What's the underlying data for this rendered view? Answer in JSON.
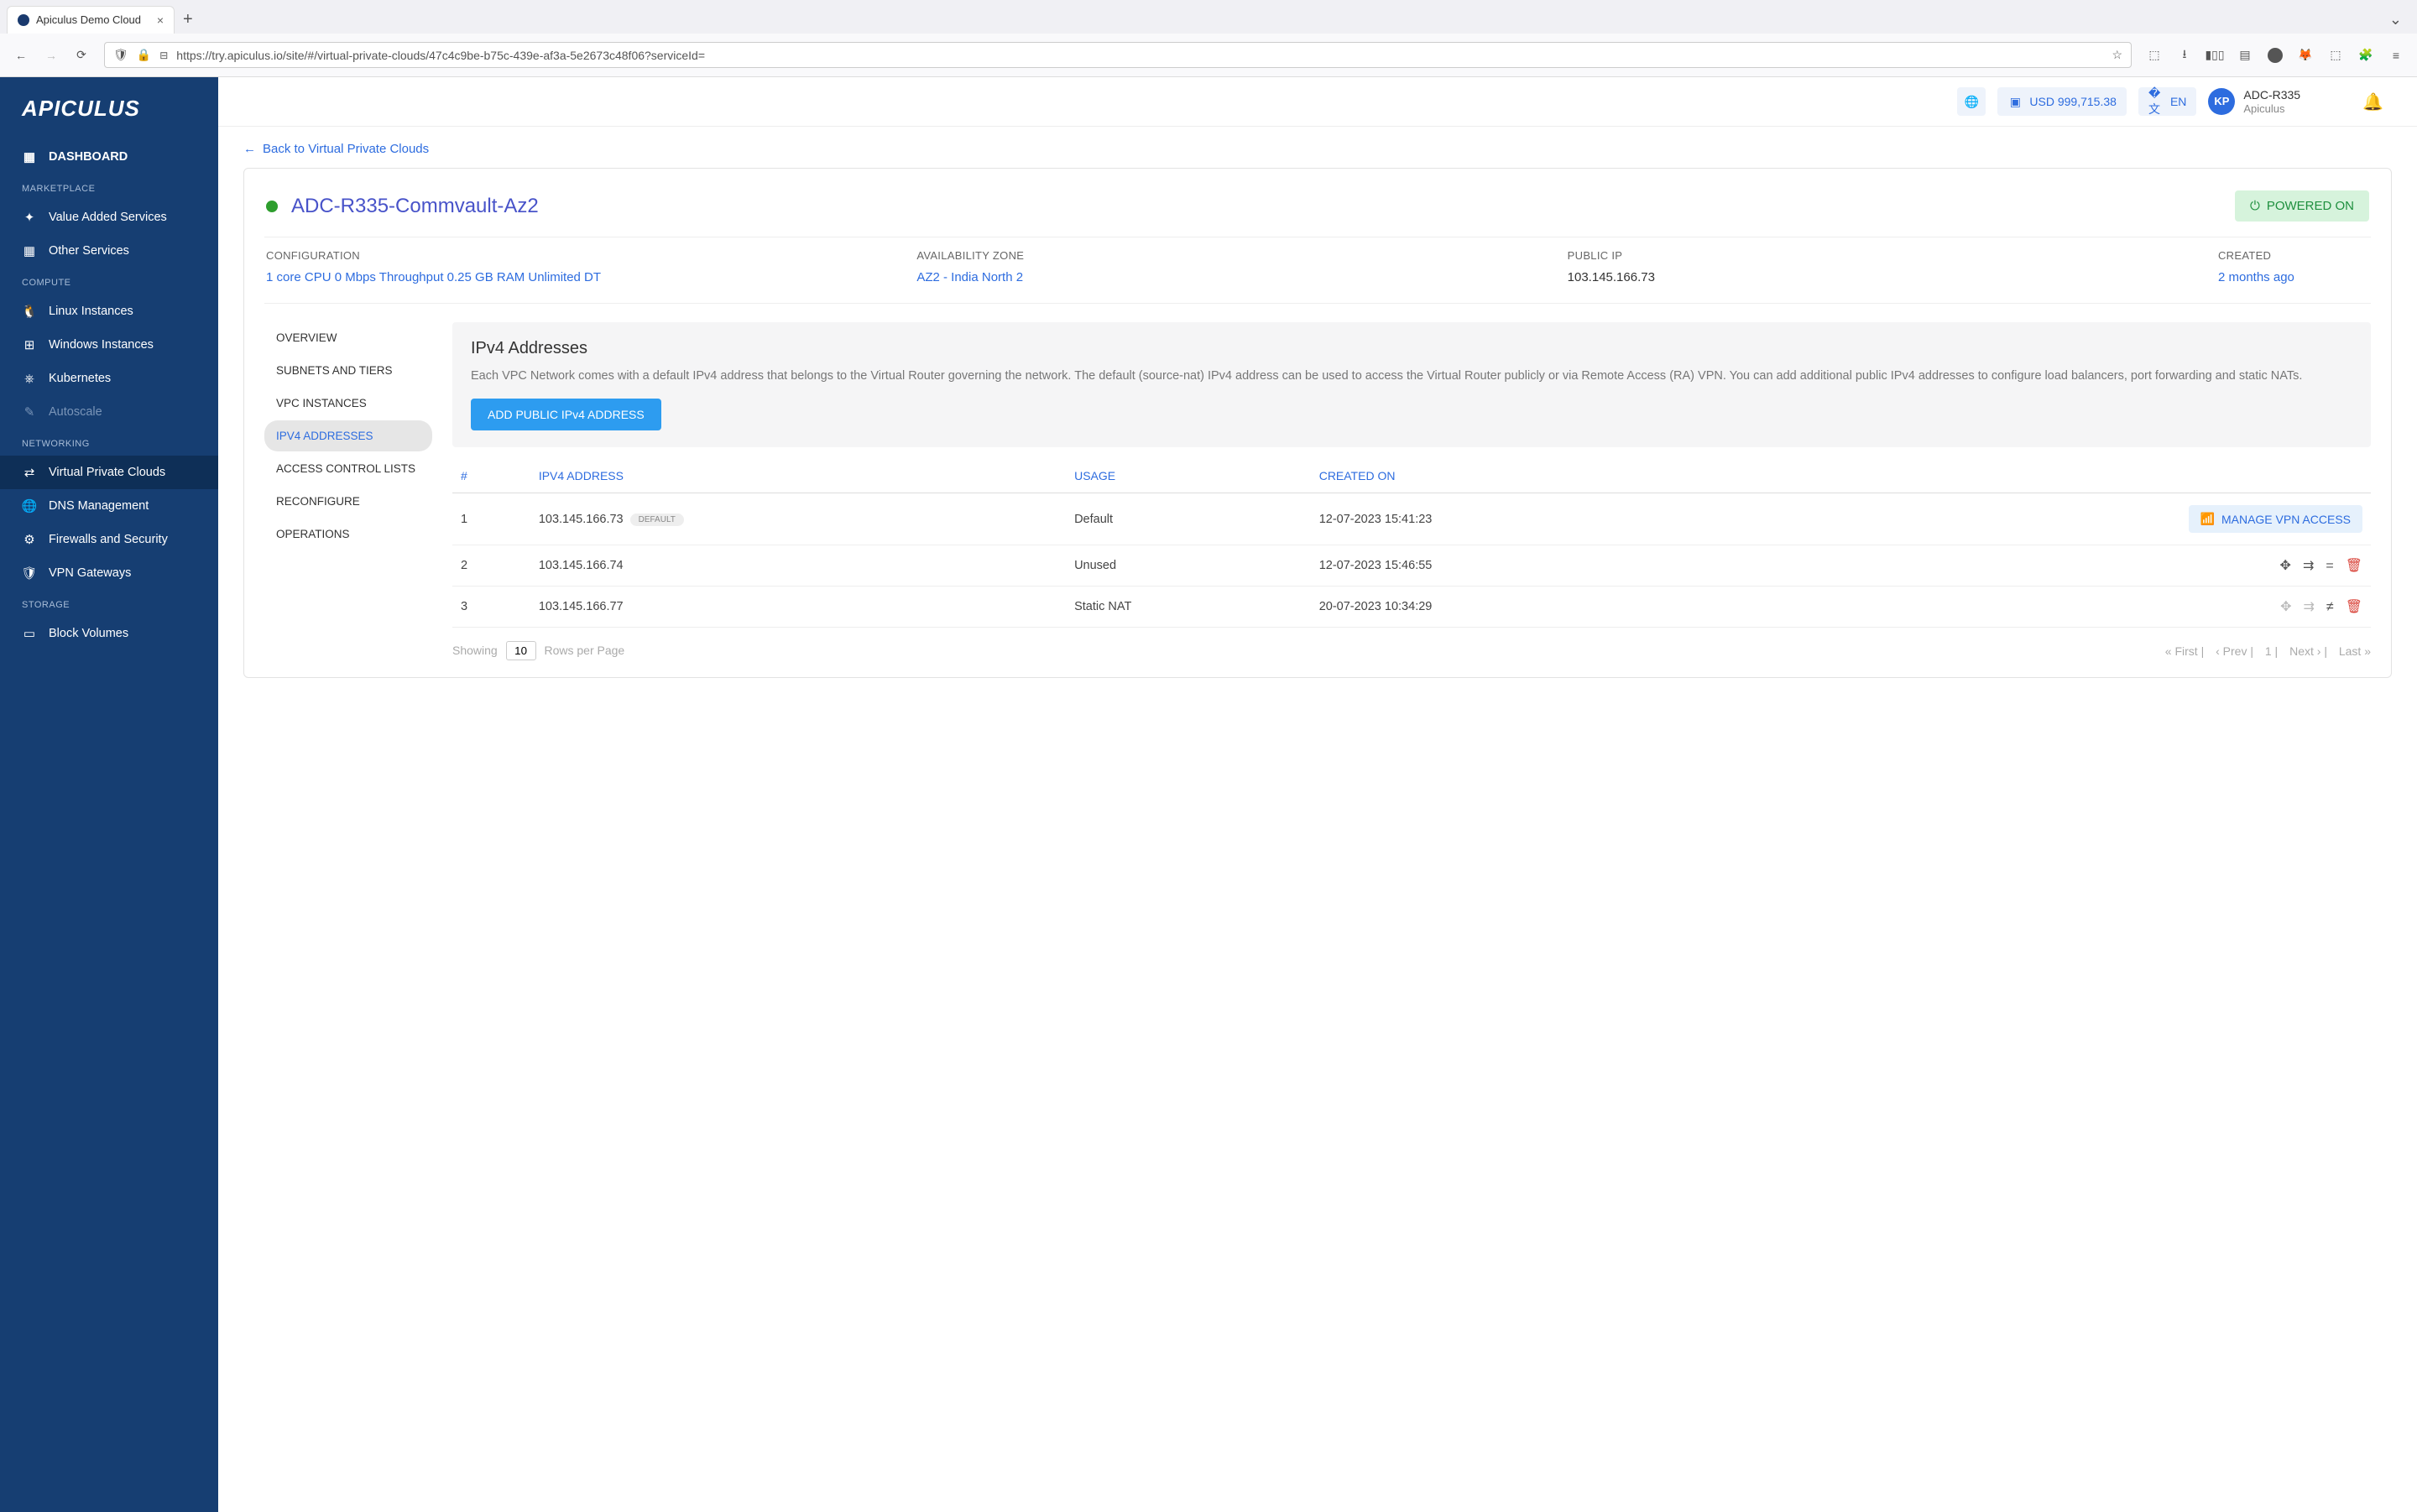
{
  "browser": {
    "tab_title": "Apiculus Demo Cloud",
    "url_display": "https://try.apiculus.io/site/#/virtual-private-clouds/47c4c9be-b75c-439e-af3a-5e2673c48f06?serviceId="
  },
  "brand": {
    "logo_text": "APICULUS"
  },
  "topbar": {
    "balance": "USD 999,715.38",
    "language": "EN",
    "user_initials": "KP",
    "user_name": "ADC-R335",
    "user_org": "Apiculus"
  },
  "sidebar": {
    "dashboard": "DASHBOARD",
    "sections": {
      "marketplace": {
        "header": "MARKETPLACE",
        "items": [
          "Value Added Services",
          "Other Services"
        ]
      },
      "compute": {
        "header": "COMPUTE",
        "items": [
          "Linux Instances",
          "Windows Instances",
          "Kubernetes",
          "Autoscale"
        ]
      },
      "networking": {
        "header": "NETWORKING",
        "items": [
          "Virtual Private Clouds",
          "DNS Management",
          "Firewalls and Security",
          "VPN Gateways"
        ]
      },
      "storage": {
        "header": "STORAGE",
        "items": [
          "Block Volumes"
        ]
      }
    }
  },
  "page": {
    "back_link": "Back to Virtual Private Clouds",
    "vpc_name": "ADC-R335-Commvault-Az2",
    "power_badge": "POWERED ON",
    "meta": {
      "config_label": "CONFIGURATION",
      "config_value": "1 core CPU 0 Mbps Throughput 0.25 GB RAM Unlimited DT",
      "az_label": "AVAILABILITY ZONE",
      "az_value": "AZ2 - India North 2",
      "ip_label": "PUBLIC IP",
      "ip_value": "103.145.166.73",
      "created_label": "CREATED",
      "created_value": "2 months ago"
    },
    "subnav": [
      "OVERVIEW",
      "SUBNETS AND TIERS",
      "VPC INSTANCES",
      "IPV4 ADDRESSES",
      "ACCESS CONTROL LISTS",
      "RECONFIGURE",
      "OPERATIONS"
    ],
    "subnav_active_index": 3,
    "panel": {
      "title": "IPv4 Addresses",
      "description": "Each VPC Network comes with a default IPv4 address that belongs to the Virtual Router governing the network. The default (source-nat) IPv4 address can be used to access the Virtual Router publicly or via Remote Access (RA) VPN. You can add additional public IPv4 addresses to configure load balancers, port forwarding and static NATs.",
      "add_button": "ADD PUBLIC IPv4 ADDRESS"
    },
    "table": {
      "headers": {
        "num": "#",
        "ip": "IPV4 ADDRESS",
        "usage": "USAGE",
        "created": "CREATED ON"
      },
      "default_pill": "DEFAULT",
      "vpn_button": "MANAGE VPN ACCESS",
      "rows": [
        {
          "n": "1",
          "ip": "103.145.166.73",
          "usage": "Default",
          "created": "12-07-2023 15:41:23",
          "is_default": true
        },
        {
          "n": "2",
          "ip": "103.145.166.74",
          "usage": "Unused",
          "created": "12-07-2023 15:46:55",
          "actions": "full"
        },
        {
          "n": "3",
          "ip": "103.145.166.77",
          "usage": "Static NAT",
          "created": "20-07-2023 10:34:29",
          "actions": "partial"
        }
      ]
    },
    "pager": {
      "showing": "Showing",
      "rows_value": "10",
      "rows_per_page": "Rows per Page",
      "first": "« First",
      "prev": "‹ Prev",
      "page": "1",
      "next": "Next ›",
      "last": "Last »"
    }
  },
  "colors": {
    "sidebar_bg": "#163e72",
    "primary_blue": "#2d6cdf",
    "button_blue": "#2d9cf0",
    "green": "#1e8f3e",
    "danger": "#d9443a"
  }
}
